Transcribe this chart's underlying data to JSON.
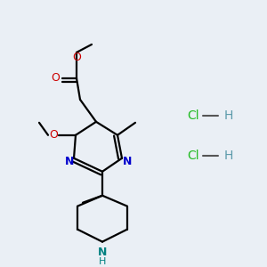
{
  "background_color": "#eaeff5",
  "bond_color": "#000000",
  "bond_width": 1.6,
  "atom_colors": {
    "O": "#cc0000",
    "N": "#0000cc",
    "NH": "#008080",
    "Cl": "#22bb22",
    "H": "#5b9aaa"
  },
  "figsize": [
    3.0,
    3.0
  ],
  "dpi": 100
}
